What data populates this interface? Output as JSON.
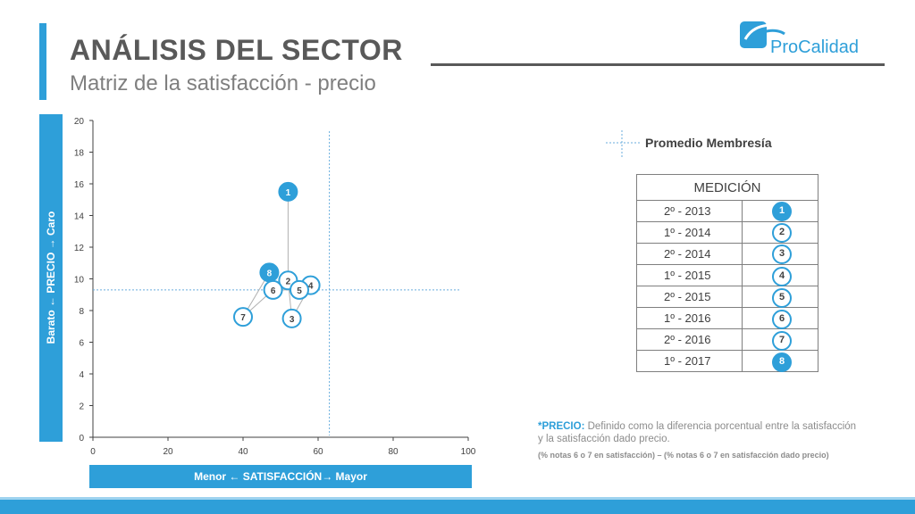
{
  "header": {
    "title": "ANÁLISIS DEL SECTOR",
    "subtitle": "Matriz de la satisfacción - precio"
  },
  "logo": {
    "text_a": "Pro",
    "text_b": "Calidad"
  },
  "axes": {
    "y_band_label": "Barato  ←  PRECIO  →  Caro",
    "x_band_label": "Menor  ← SATISFACCIÓN→ Mayor"
  },
  "chart_data": {
    "type": "scatter",
    "xlim": [
      0,
      100
    ],
    "ylim": [
      0,
      20
    ],
    "x_ticks": [
      0,
      20,
      40,
      60,
      80,
      100
    ],
    "y_ticks": [
      0,
      2,
      4,
      6,
      8,
      10,
      12,
      14,
      16,
      18,
      20
    ],
    "points": [
      {
        "label": "1",
        "x": 52,
        "y": 15.5,
        "filled": true
      },
      {
        "label": "2",
        "x": 52,
        "y": 9.9,
        "filled": false
      },
      {
        "label": "3",
        "x": 53,
        "y": 7.5,
        "filled": false
      },
      {
        "label": "4",
        "x": 58,
        "y": 9.6,
        "filled": false
      },
      {
        "label": "5",
        "x": 55,
        "y": 9.3,
        "filled": false
      },
      {
        "label": "6",
        "x": 48,
        "y": 9.3,
        "filled": false
      },
      {
        "label": "7",
        "x": 40,
        "y": 7.6,
        "filled": false
      },
      {
        "label": "8",
        "x": 47,
        "y": 10.4,
        "filled": true
      }
    ],
    "average_lines": {
      "x": 63,
      "y": 9.3
    },
    "legend": "Promedio Membresía"
  },
  "table": {
    "header": "MEDICIÓN",
    "rows": [
      {
        "period": "2º - 2013",
        "marker": "1",
        "filled": true
      },
      {
        "period": "1º - 2014",
        "marker": "2",
        "filled": false
      },
      {
        "period": "2º - 2014",
        "marker": "3",
        "filled": false
      },
      {
        "period": "1º - 2015",
        "marker": "4",
        "filled": false
      },
      {
        "period": "2º - 2015",
        "marker": "5",
        "filled": false
      },
      {
        "period": "1º - 2016",
        "marker": "6",
        "filled": false
      },
      {
        "period": "2º - 2016",
        "marker": "7",
        "filled": false
      },
      {
        "period": "1º - 2017",
        "marker": "8",
        "filled": true
      }
    ]
  },
  "note": {
    "key": "*PRECIO:",
    "text": "Definido como la diferencia porcentual entre la satisfacción y la satisfacción dado precio.",
    "formula": "(% notas 6 o 7 en satisfacción) –  (% notas 6 o 7 en satisfacción dado precio)"
  },
  "colors": {
    "accent": "#2e9fd9",
    "text": "#595959",
    "average_line": "#6aaede"
  }
}
